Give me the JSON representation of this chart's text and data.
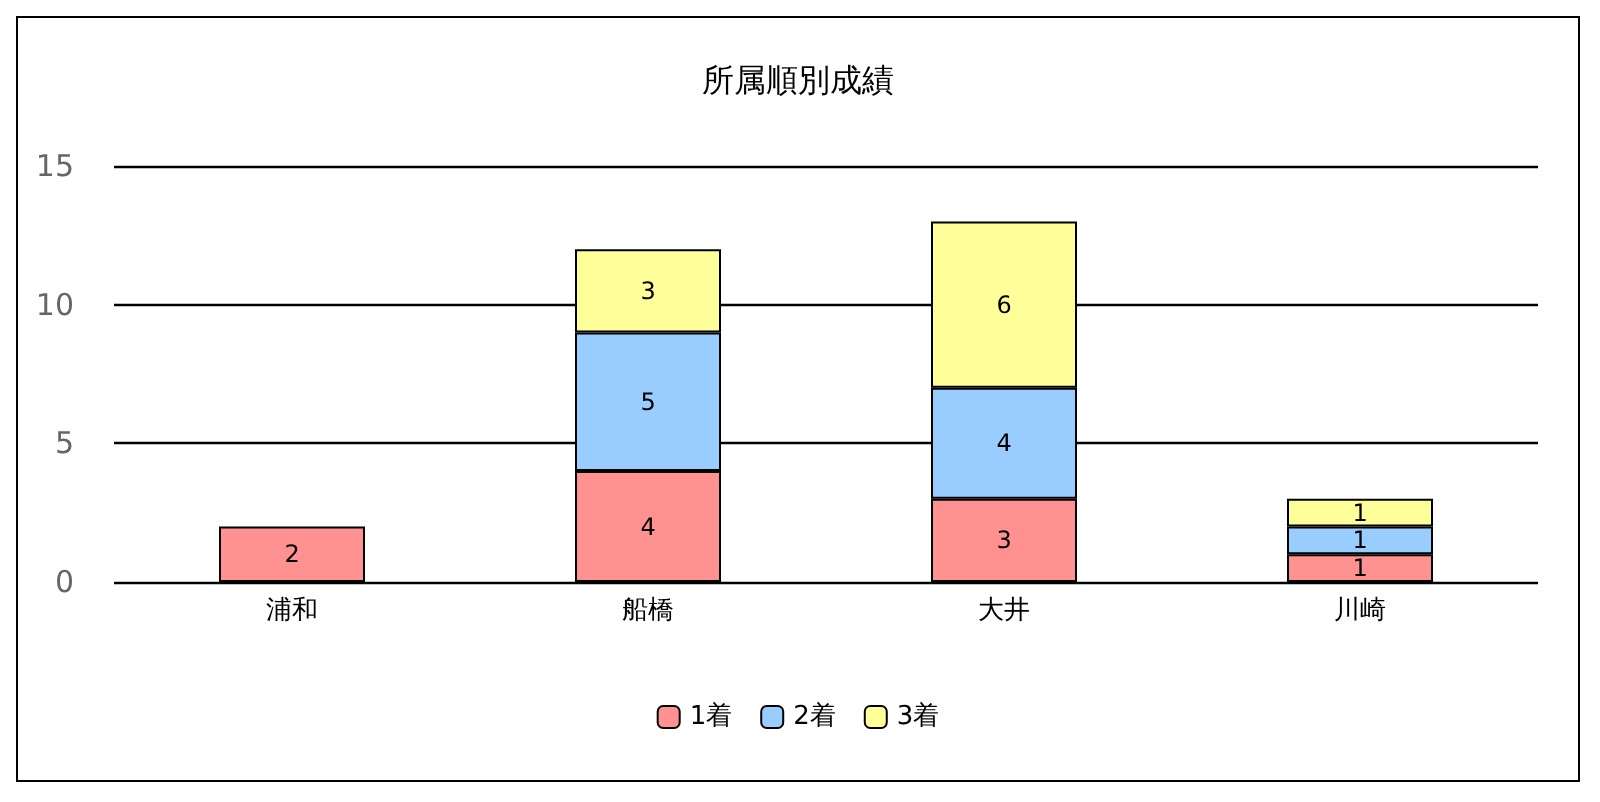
{
  "chart_data": {
    "type": "bar",
    "title": "所属順別成績",
    "categories": [
      "浦和",
      "船橋",
      "大井",
      "川崎"
    ],
    "series": [
      {
        "name": "1着",
        "color": "#ff9191",
        "values": [
          2,
          4,
          3,
          1
        ]
      },
      {
        "name": "2着",
        "color": "#99ccff",
        "values": [
          null,
          5,
          4,
          1
        ]
      },
      {
        "name": "3着",
        "color": "#ffff99",
        "values": [
          null,
          3,
          6,
          1
        ]
      }
    ],
    "stacked": true,
    "ylim": [
      0,
      15
    ],
    "yticks": [
      0,
      5,
      10,
      15
    ],
    "grid": "y",
    "legend": "bottom",
    "data_labels": true
  }
}
